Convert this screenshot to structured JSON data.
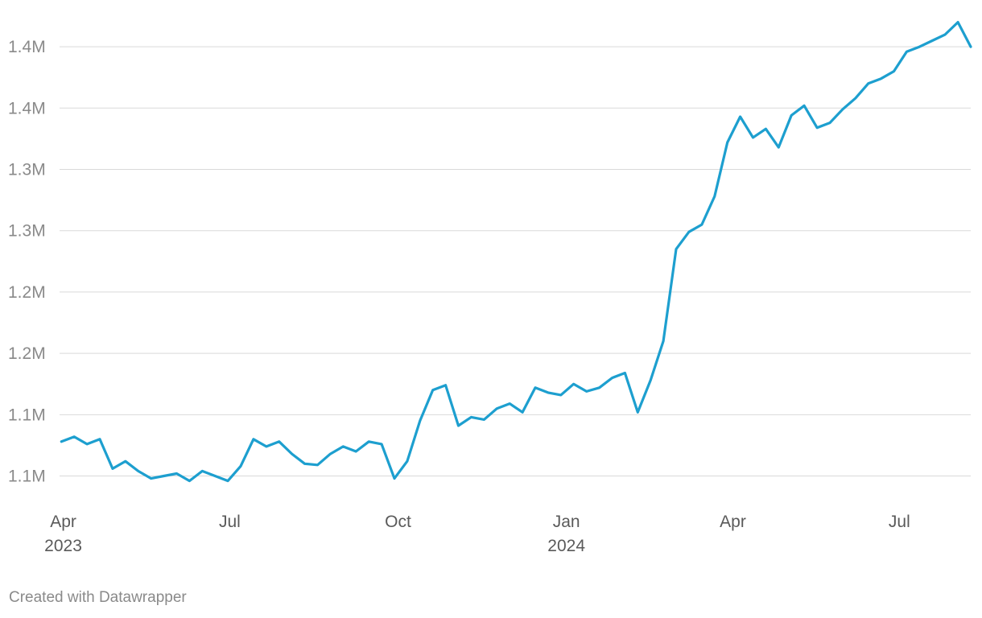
{
  "chart_data": {
    "type": "line",
    "title": "",
    "xlabel": "",
    "ylabel": "",
    "x_range": [
      "2023-03-30",
      "2024-08-09"
    ],
    "ylim": [
      1080000,
      1475000
    ],
    "y_ticks": [
      {
        "value": 1100000,
        "label": "1.1M"
      },
      {
        "value": 1150000,
        "label": "1.1M"
      },
      {
        "value": 1200000,
        "label": "1.2M"
      },
      {
        "value": 1250000,
        "label": "1.2M"
      },
      {
        "value": 1300000,
        "label": "1.3M"
      },
      {
        "value": 1350000,
        "label": "1.3M"
      },
      {
        "value": 1400000,
        "label": "1.4M"
      },
      {
        "value": 1450000,
        "label": "1.4M"
      }
    ],
    "x_ticks": [
      {
        "date": "2023-04-01",
        "label": "Apr",
        "sublabel": "2023"
      },
      {
        "date": "2023-07-01",
        "label": "Jul",
        "sublabel": ""
      },
      {
        "date": "2023-10-01",
        "label": "Oct",
        "sublabel": ""
      },
      {
        "date": "2024-01-01",
        "label": "Jan",
        "sublabel": "2024"
      },
      {
        "date": "2024-04-01",
        "label": "Apr",
        "sublabel": ""
      },
      {
        "date": "2024-07-01",
        "label": "Jul",
        "sublabel": ""
      }
    ],
    "grid": true,
    "legend": "none",
    "line_color": "#1d9fcf",
    "series": [
      {
        "x": [
          "2023-03-31",
          "2023-04-07",
          "2023-04-14",
          "2023-04-21",
          "2023-04-28",
          "2023-05-05",
          "2023-05-12",
          "2023-05-19",
          "2023-05-26",
          "2023-06-02",
          "2023-06-09",
          "2023-06-16",
          "2023-06-23",
          "2023-06-30",
          "2023-07-07",
          "2023-07-14",
          "2023-07-21",
          "2023-07-28",
          "2023-08-04",
          "2023-08-11",
          "2023-08-18",
          "2023-08-25",
          "2023-09-01",
          "2023-09-08",
          "2023-09-15",
          "2023-09-22",
          "2023-09-29",
          "2023-10-06",
          "2023-10-13",
          "2023-10-20",
          "2023-10-27",
          "2023-11-03",
          "2023-11-10",
          "2023-11-17",
          "2023-11-24",
          "2023-12-01",
          "2023-12-08",
          "2023-12-15",
          "2023-12-22",
          "2023-12-29",
          "2024-01-05",
          "2024-01-12",
          "2024-01-19",
          "2024-01-26",
          "2024-02-02",
          "2024-02-09",
          "2024-02-16",
          "2024-02-23",
          "2024-03-01",
          "2024-03-08",
          "2024-03-15",
          "2024-03-22",
          "2024-03-29",
          "2024-04-05",
          "2024-04-12",
          "2024-04-19",
          "2024-04-26",
          "2024-05-03",
          "2024-05-10",
          "2024-05-17",
          "2024-05-24",
          "2024-05-31",
          "2024-06-07",
          "2024-06-14",
          "2024-06-21",
          "2024-06-28",
          "2024-07-05",
          "2024-07-12",
          "2024-07-19",
          "2024-07-26",
          "2024-08-02",
          "2024-08-09"
        ],
        "y": [
          1128000,
          1132000,
          1126000,
          1130000,
          1106000,
          1112000,
          1104000,
          1098000,
          1100000,
          1102000,
          1096000,
          1104000,
          1100000,
          1096000,
          1108000,
          1130000,
          1124000,
          1128000,
          1118000,
          1110000,
          1109000,
          1118000,
          1124000,
          1120000,
          1128000,
          1126000,
          1098000,
          1112000,
          1145000,
          1170000,
          1174000,
          1141000,
          1148000,
          1146000,
          1155000,
          1159000,
          1152000,
          1172000,
          1168000,
          1166000,
          1175000,
          1169000,
          1172000,
          1180000,
          1184000,
          1152000,
          1178000,
          1210000,
          1285000,
          1299000,
          1305000,
          1328000,
          1372000,
          1393000,
          1376000,
          1383000,
          1368000,
          1394000,
          1402000,
          1384000,
          1388000,
          1399000,
          1408000,
          1420000,
          1424000,
          1430000,
          1446000,
          1450000,
          1455000,
          1460000,
          1470000,
          1450000
        ]
      }
    ]
  },
  "footer": {
    "credit": "Created with Datawrapper"
  }
}
